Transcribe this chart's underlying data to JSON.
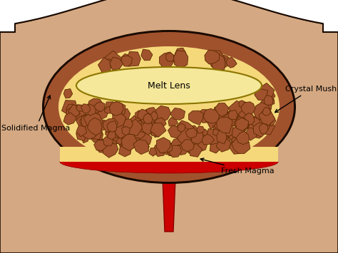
{
  "bg_color": "#D4A882",
  "sky_color": "#FFFFFF",
  "ground_color": "#D4A882",
  "ground_outline": "#1a0a00",
  "chamber_outer_color": "#1a0a00",
  "chamber_ring_color": "#A0522D",
  "chamber_fill_color": "#F5D87A",
  "melt_lens_fill": "#F5E89A",
  "melt_lens_edge": "#8B7500",
  "crystal_fill": "#A0522D",
  "crystal_edge": "#5C2A00",
  "red_magma_color": "#CC0000",
  "red_magma_edge": "#880000",
  "conduit_color": "#CC0000",
  "conduit_edge": "#880000",
  "label_fs": 8,
  "label_color": "#000000",
  "fig_w": 4.74,
  "fig_h": 3.55,
  "dpi": 100,
  "labels": {
    "melt_lens": "Melt Lens",
    "crystal_mush": "Crystal Mush",
    "solidified_magma": "Solidified Magma",
    "fresh_magma": "Fresh Magma"
  }
}
